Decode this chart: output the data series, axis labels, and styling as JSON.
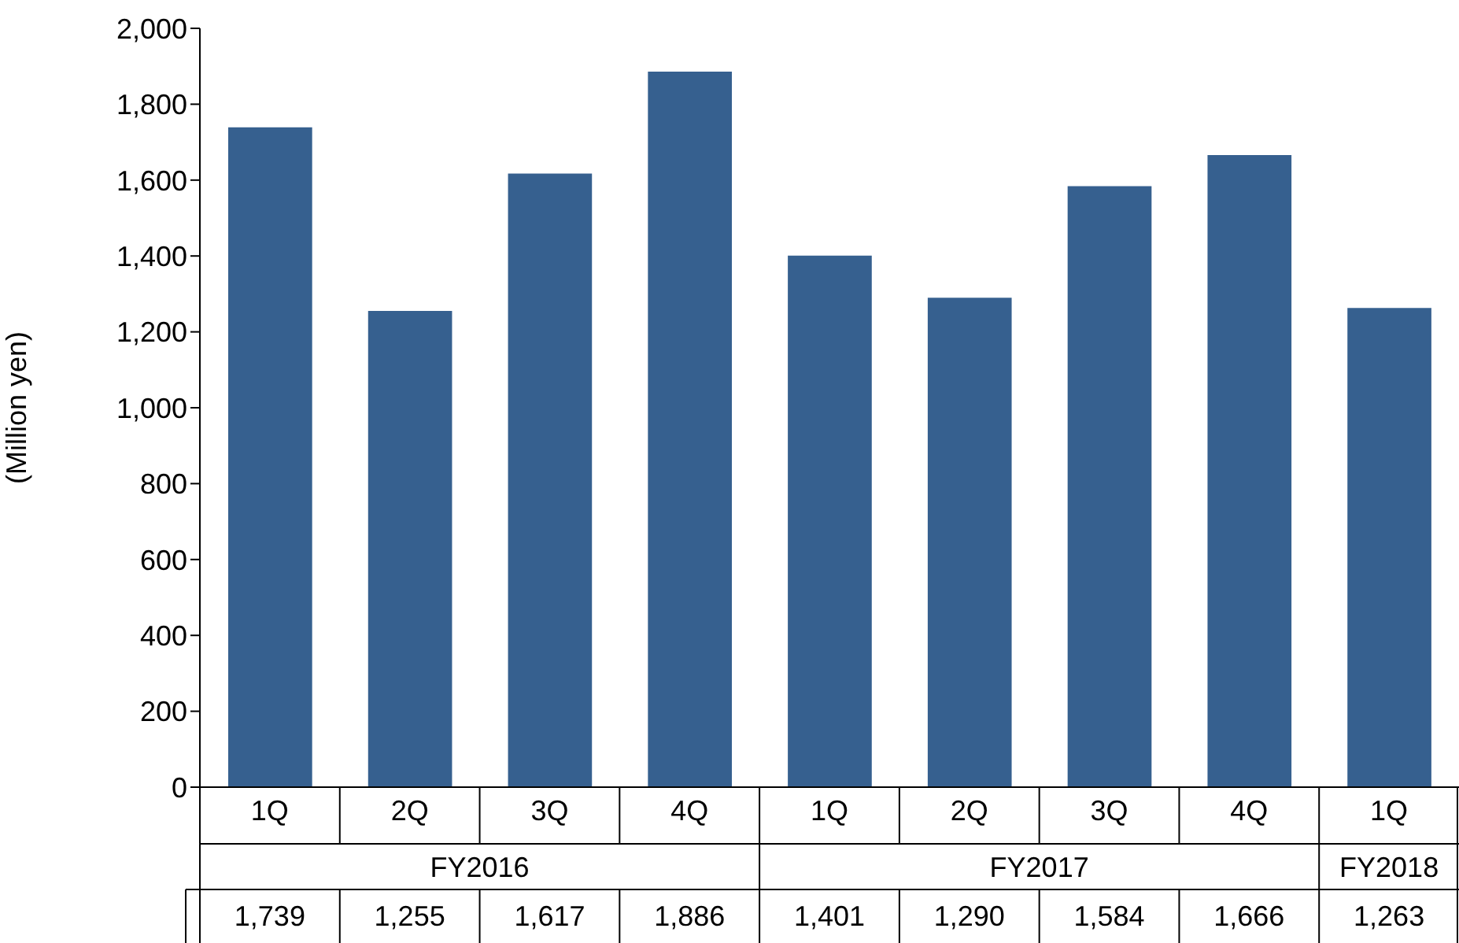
{
  "chart_data": {
    "type": "bar",
    "ylabel": "(Million yen)",
    "categories": [
      "1Q",
      "2Q",
      "3Q",
      "4Q",
      "1Q",
      "2Q",
      "3Q",
      "4Q",
      "1Q"
    ],
    "values": [
      1739,
      1255,
      1617,
      1886,
      1401,
      1290,
      1584,
      1666,
      1263
    ],
    "value_labels": [
      "1,739",
      "1,255",
      "1,617",
      "1,886",
      "1,401",
      "1,290",
      "1,584",
      "1,666",
      "1,263"
    ],
    "color": "#36608f",
    "ylim": [
      0,
      2000
    ],
    "yticks": [
      0,
      200,
      400,
      600,
      800,
      {
        "value": 1000,
        "label": "1,000"
      },
      {
        "value": 1200,
        "label": "1,200"
      },
      {
        "value": 1400,
        "label": "1,400"
      },
      {
        "value": 1600,
        "label": "1,600"
      },
      {
        "value": 1800,
        "label": "1,800"
      },
      {
        "value": 2000,
        "label": "2,000"
      }
    ],
    "annotations": [
      "FY2016",
      "FY2017",
      "FY2018"
    ]
  }
}
